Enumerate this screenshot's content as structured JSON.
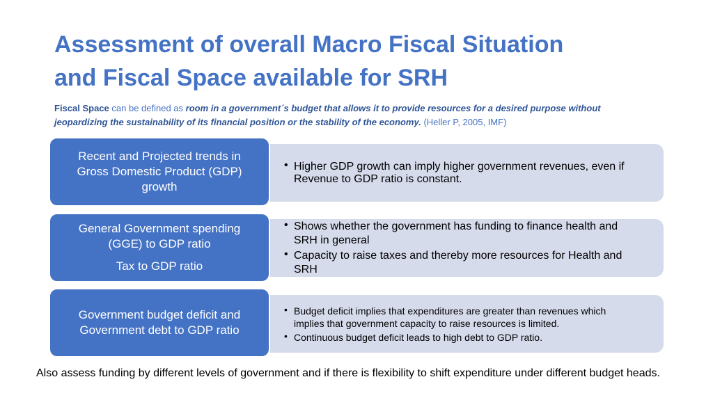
{
  "header": {
    "title_lines": [
      "Assessment of overall Macro Fiscal Situation",
      "and Fiscal Space available for SRH"
    ],
    "definition": {
      "term": "Fiscal Space",
      "connector": "can be defined as",
      "definition": "room in a government´s budget that allows it to provide resources for a desired purpose without jeopardizing the sustainability of its financial position or the stability of the economy.",
      "citation": "(Heller P, 2005, IMF)"
    }
  },
  "rows": [
    {
      "labels": [
        "Recent and Projected trends in Gross Domestic Product (GDP) growth"
      ],
      "bullets": [
        "Higher GDP growth can imply higher government revenues, even if Revenue to GDP ratio is constant."
      ]
    },
    {
      "labels": [
        "General Government spending (GGE) to GDP ratio",
        "Tax to GDP ratio"
      ],
      "bullets": [
        "Shows whether the government has funding to finance health and SRH in general",
        "Capacity to raise taxes and thereby more resources for Health and SRH"
      ]
    },
    {
      "labels": [
        "Government budget deficit and Government debt to GDP ratio"
      ],
      "bullets": [
        "Budget deficit implies that expenditures are greater than revenues which implies that government capacity to raise resources is limited.",
        "Continuous budget deficit leads to high debt to GDP ratio."
      ]
    }
  ],
  "footer": {
    "note": "Also assess funding by different levels of government and if there is flexibility to shift expenditure under different budget heads."
  }
}
